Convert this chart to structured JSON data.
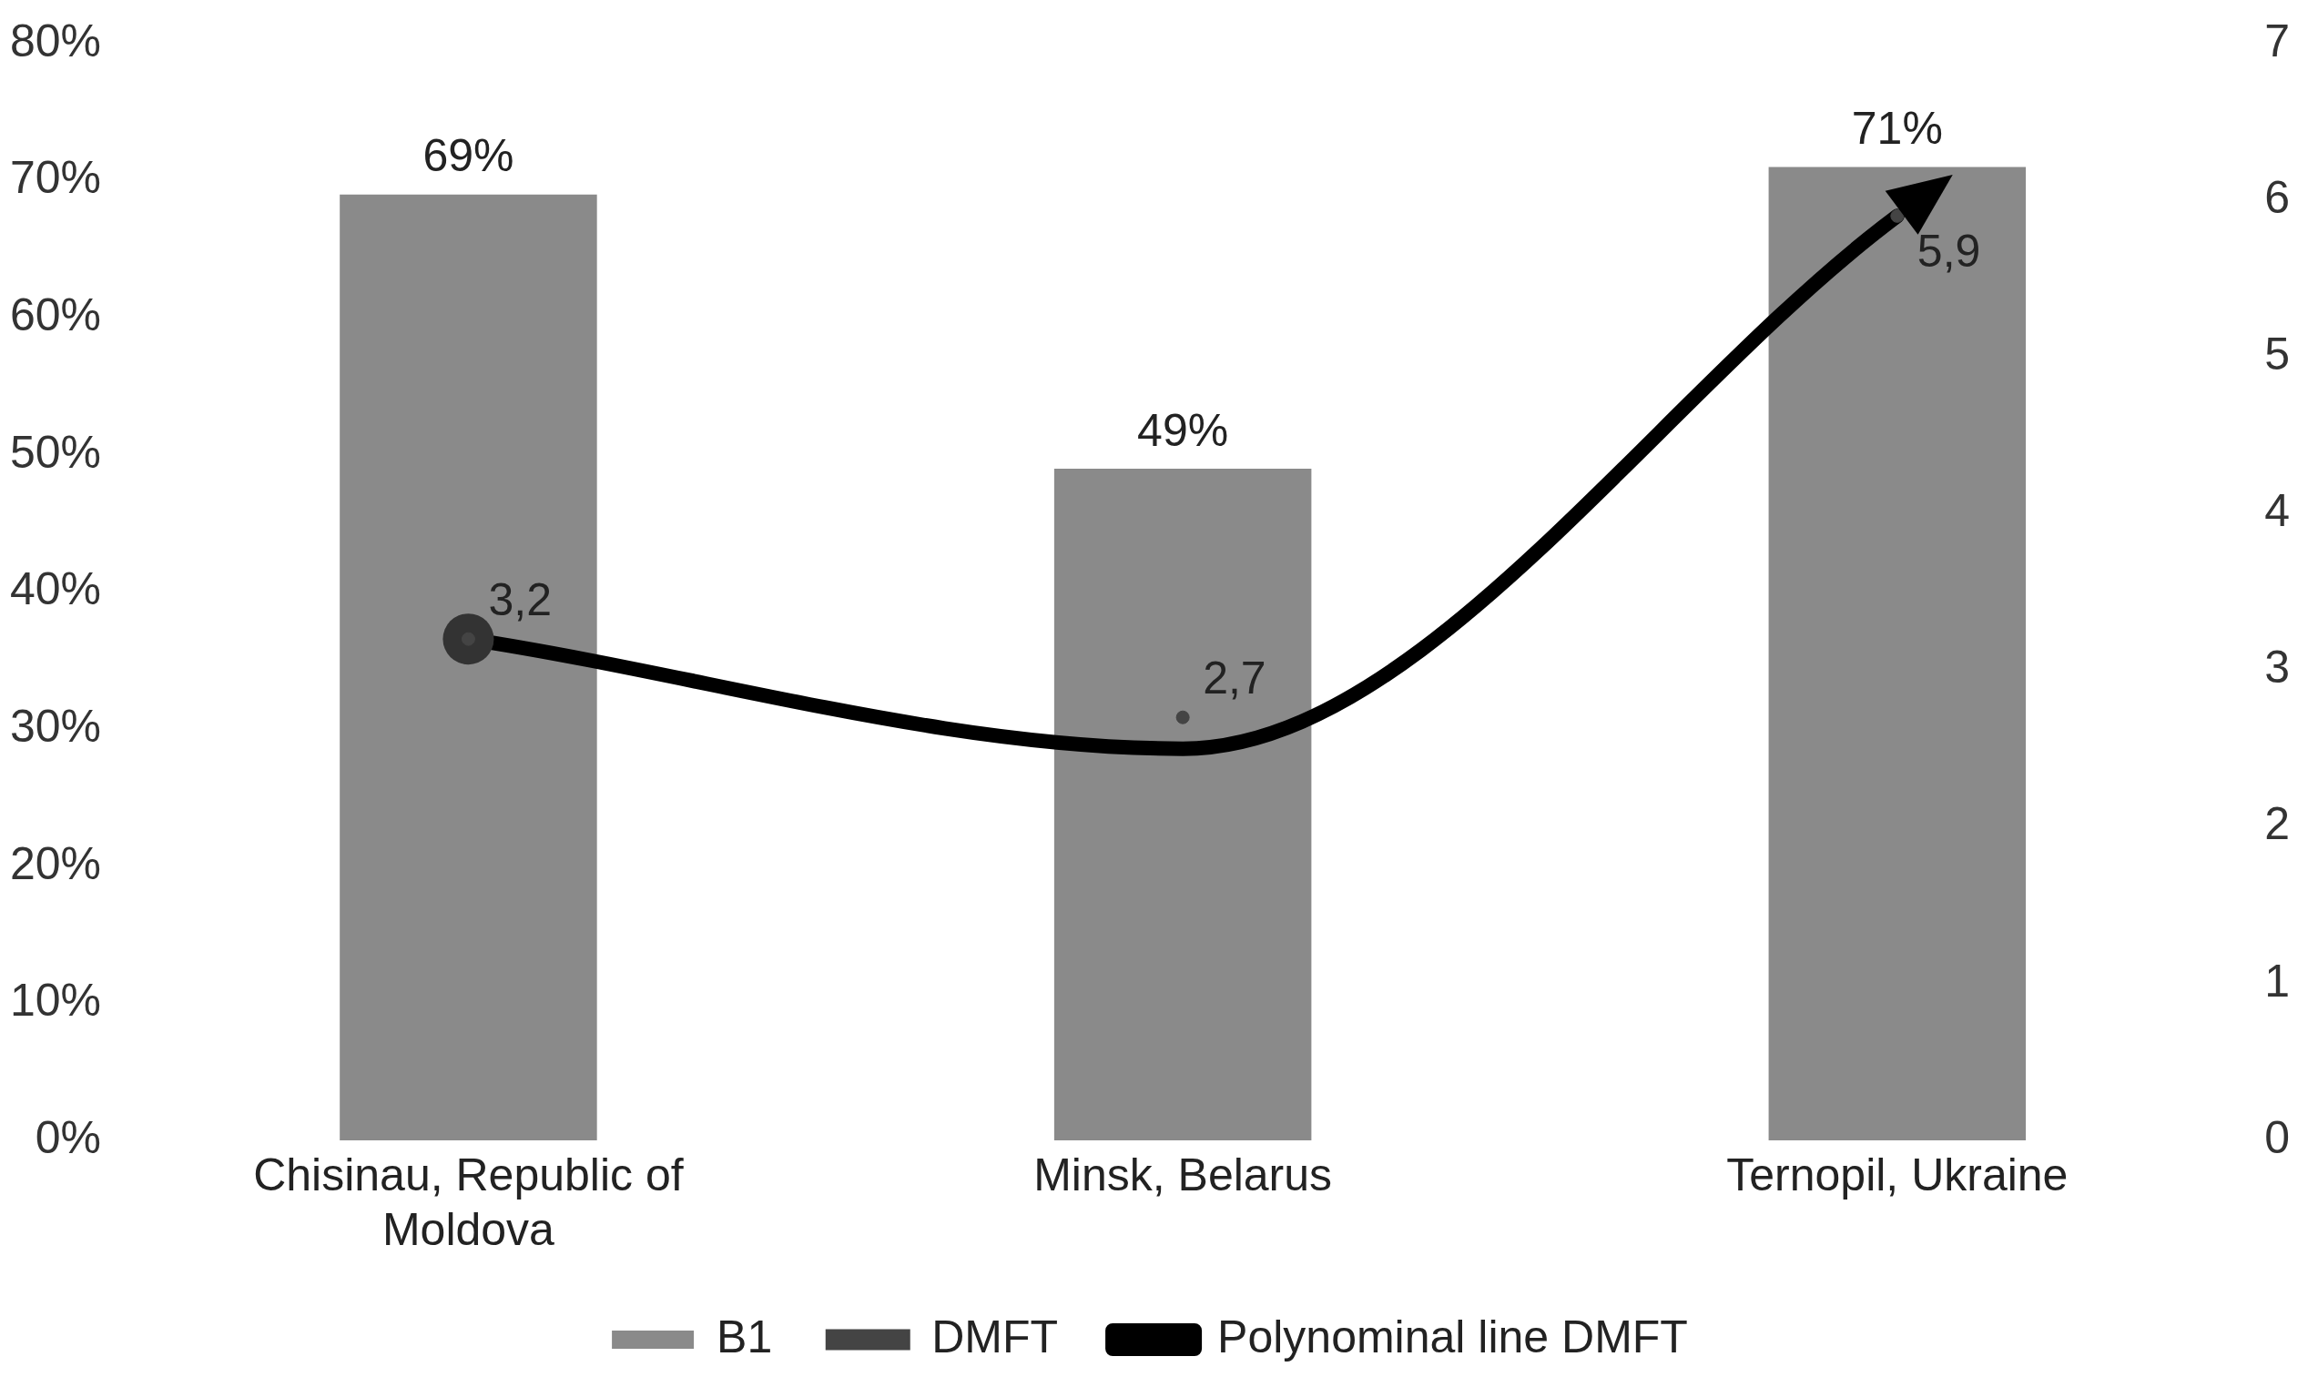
{
  "chart_data": {
    "type": "bar",
    "categories": [
      "Chisinau, Republic of Moldova",
      "Minsk, Belarus",
      "Ternopil, Ukraine"
    ],
    "series": [
      {
        "name": "B1",
        "color": "#8a8a8a",
        "values": [
          69,
          49,
          71
        ],
        "value_labels": [
          "69%",
          "49%",
          "71%"
        ]
      },
      {
        "name": "DMFT",
        "type": "scatter",
        "color": "#444444",
        "axis": "y2",
        "marker": "circle",
        "values": [
          3.2,
          2.7,
          5.9
        ],
        "value_labels": [
          "3,2",
          "2,7",
          "5,9"
        ]
      },
      {
        "name": "Polynominal line DMFT",
        "type": "line",
        "axis": "y2",
        "color": "#000000",
        "marker": "circle",
        "values": [
          3.2,
          2.5,
          5.9
        ]
      }
    ],
    "ylim": [
      0,
      80
    ],
    "yticks": [
      {
        "value": 0,
        "label": "0%"
      },
      {
        "value": 10,
        "label": "10%"
      },
      {
        "value": 20,
        "label": "20%"
      },
      {
        "value": 30,
        "label": "30%"
      },
      {
        "value": 40,
        "label": "40%"
      },
      {
        "value": 50,
        "label": "50%"
      },
      {
        "value": 60,
        "label": "60%"
      },
      {
        "value": 70,
        "label": "70%"
      },
      {
        "value": 80,
        "label": "80%"
      }
    ],
    "y2lim": [
      0,
      7
    ],
    "y2ticks": [
      0,
      1,
      2,
      3,
      4,
      5,
      6,
      7
    ],
    "grid": false,
    "legend": "bottom"
  }
}
